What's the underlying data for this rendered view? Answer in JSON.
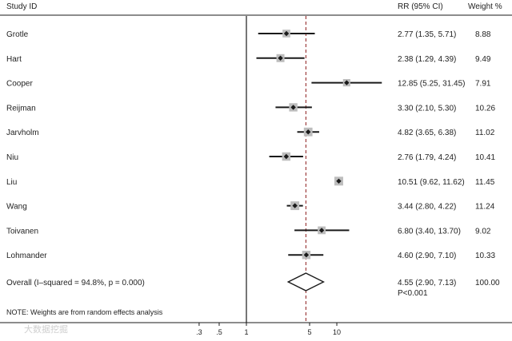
{
  "header": {
    "study_label": "Study  ID",
    "rr_label": "RR (95% CI)",
    "weight_label": "Weight  %"
  },
  "note": "NOTE: Weights are from random effects analysis",
  "watermark": "大数据挖掘",
  "colors": {
    "lines": "#1a1a1a",
    "reference_line": "#8b1a1a",
    "weight_box": "#bdbdbd"
  },
  "chart_data": {
    "type": "forest",
    "x_scale": "log",
    "x_ticks": [
      {
        "value": 0.3,
        "label": ".3"
      },
      {
        "value": 0.5,
        "label": ".5"
      },
      {
        "value": 1,
        "label": "1"
      },
      {
        "value": 5,
        "label": "5"
      },
      {
        "value": 10,
        "label": "10"
      }
    ],
    "null_line": 1,
    "overall_reference_line": 4.55,
    "studies": [
      {
        "name": "Grotle",
        "rr": 2.77,
        "low": 1.35,
        "high": 5.71,
        "rr_text": "2.77 (1.35, 5.71)",
        "weight": 8.88,
        "weight_text": "8.88"
      },
      {
        "name": "Hart",
        "rr": 2.38,
        "low": 1.29,
        "high": 4.39,
        "rr_text": "2.38 (1.29, 4.39)",
        "weight": 9.49,
        "weight_text": "9.49"
      },
      {
        "name": "Cooper",
        "rr": 12.85,
        "low": 5.25,
        "high": 31.45,
        "rr_text": "12.85 (5.25, 31.45)",
        "weight": 7.91,
        "weight_text": "7.91"
      },
      {
        "name": "Reijman",
        "rr": 3.3,
        "low": 2.1,
        "high": 5.3,
        "rr_text": "3.30 (2.10, 5.30)",
        "weight": 10.26,
        "weight_text": "10.26"
      },
      {
        "name": "Jarvholm",
        "rr": 4.82,
        "low": 3.65,
        "high": 6.38,
        "rr_text": "4.82 (3.65, 6.38)",
        "weight": 11.02,
        "weight_text": "11.02"
      },
      {
        "name": "Niu",
        "rr": 2.76,
        "low": 1.79,
        "high": 4.24,
        "rr_text": "2.76 (1.79, 4.24)",
        "weight": 10.41,
        "weight_text": "10.41"
      },
      {
        "name": "Liu",
        "rr": 10.51,
        "low": 9.62,
        "high": 11.62,
        "rr_text": "10.51 (9.62, 11.62)",
        "weight": 11.45,
        "weight_text": "11.45"
      },
      {
        "name": "Wang",
        "rr": 3.44,
        "low": 2.8,
        "high": 4.22,
        "rr_text": "3.44 (2.80, 4.22)",
        "weight": 11.24,
        "weight_text": "11.24"
      },
      {
        "name": "Toivanen",
        "rr": 6.8,
        "low": 3.4,
        "high": 13.7,
        "rr_text": "6.80 (3.40, 13.70)",
        "weight": 9.02,
        "weight_text": "9.02"
      },
      {
        "name": "Lohmander",
        "rr": 4.6,
        "low": 2.9,
        "high": 7.1,
        "rr_text": "4.60 (2.90, 7.10)",
        "weight": 10.33,
        "weight_text": "10.33"
      }
    ],
    "overall": {
      "name": "Overall  (I–squared = 94.8%, p = 0.000)",
      "rr": 4.55,
      "low": 2.9,
      "high": 7.13,
      "rr_text": "4.55 (2.90, 7.13)",
      "p_text": "P<0.001",
      "weight_text": "100.00"
    }
  }
}
